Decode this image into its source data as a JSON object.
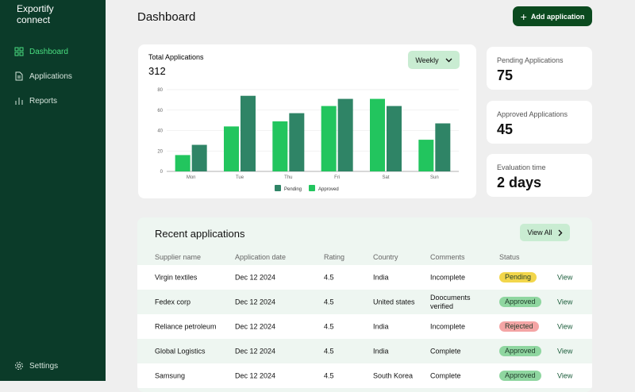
{
  "sidebar": {
    "brand": "Exportify connect",
    "nav": [
      "Dashboard",
      "Applications",
      "Reports"
    ],
    "footer": "Settings"
  },
  "header": {
    "title": "Dashboard",
    "button": "Add application"
  },
  "chart_data": {
    "type": "bar",
    "title": "Total Applications",
    "total": "312",
    "period": "Weekly",
    "categories": [
      "Mon",
      "Tue",
      "Thu",
      "Fri",
      "Sat",
      "Sun"
    ],
    "series": [
      {
        "name": "Pending",
        "color": "#2f8466",
        "values": [
          26,
          74,
          57,
          71,
          64,
          47
        ]
      },
      {
        "name": "Approved",
        "color": "#22c55e",
        "values": [
          16,
          44,
          49,
          64,
          71,
          31
        ]
      }
    ],
    "ylim": [
      0,
      80
    ],
    "yticks": [
      0,
      20,
      40,
      60,
      80
    ],
    "grid": true
  },
  "stats": [
    {
      "label": "Pending Applications",
      "value": "75"
    },
    {
      "label": "Approved Applications",
      "value": "45"
    },
    {
      "label": "Evaluation time",
      "value": "2 days"
    }
  ],
  "table": {
    "title": "Recent applications",
    "button": "View All",
    "columns": [
      "Supplier name",
      "Application date",
      "Rating",
      "Country",
      "Comments",
      "Status"
    ],
    "rows": [
      {
        "cells": [
          "Virgin textiles",
          "Dec 12 2024",
          "4.5",
          "India",
          "Incomplete",
          "Pending",
          "View"
        ],
        "status_color": "#f2d64b"
      },
      {
        "cells": [
          "Fedex corp",
          "Dec 12 2024",
          "4.5",
          "United states",
          "Doocuments verified",
          "Approved",
          "View"
        ],
        "status_color": "#8fd6a0"
      },
      {
        "cells": [
          "Reliance petroleum",
          "Dec 12 2024",
          "4.5",
          "India",
          "Incomplete",
          "Rejected",
          "View"
        ],
        "status_color": "#f4a5a5"
      },
      {
        "cells": [
          "Global Logistics",
          "Dec 12 2024",
          "4.5",
          "India",
          "Complete",
          "Approved",
          "View"
        ],
        "status_color": "#8fd6a0"
      },
      {
        "cells": [
          "Samsung",
          "Dec 12 2024",
          "4.5",
          "South Korea",
          "Complete",
          "Approved",
          "View"
        ],
        "status_color": "#8fd6a0"
      }
    ]
  }
}
